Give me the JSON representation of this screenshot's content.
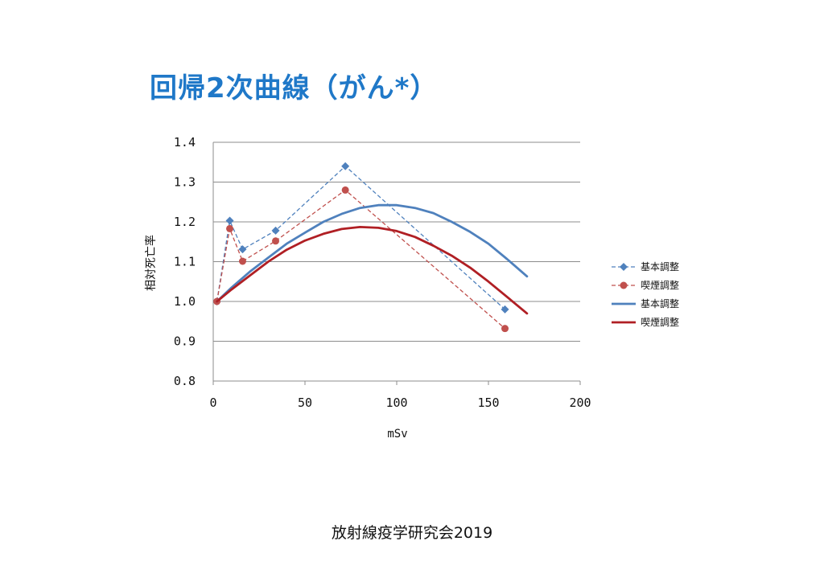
{
  "slide": {
    "title": "回帰2次曲線（がん*）",
    "footer": "放射線疫学研究会2019"
  },
  "chart_data": {
    "type": "line",
    "xlabel": "mSv",
    "ylabel": "相対死亡率",
    "xlim": [
      0,
      200
    ],
    "ylim": [
      0.8,
      1.4
    ],
    "x_ticks": [
      "0",
      "50",
      "100",
      "150",
      "200"
    ],
    "x_tick_values": [
      0,
      50,
      100,
      150,
      200
    ],
    "y_ticks": [
      "0.8",
      "0.9",
      "1.0",
      "1.1",
      "1.2",
      "1.3",
      "1.4"
    ],
    "y_tick_values": [
      0.8,
      0.9,
      1.0,
      1.1,
      1.2,
      1.3,
      1.4
    ],
    "grid": "horizontal",
    "legend_position": "right",
    "series": [
      {
        "name": "基本調整",
        "style": "dashed-marker",
        "marker": "diamond",
        "color": "#4f81bd",
        "points": [
          [
            2,
            1.0
          ],
          [
            9,
            1.203
          ],
          [
            16,
            1.131
          ],
          [
            34,
            1.178
          ],
          [
            72,
            1.34
          ],
          [
            159,
            0.98
          ]
        ]
      },
      {
        "name": "喫煙調整",
        "style": "dashed-marker",
        "marker": "circle",
        "color": "#c0504d",
        "points": [
          [
            2,
            1.0
          ],
          [
            9,
            1.183
          ],
          [
            16,
            1.101
          ],
          [
            34,
            1.152
          ],
          [
            72,
            1.28
          ],
          [
            159,
            0.932
          ]
        ]
      },
      {
        "name": "基本調整",
        "style": "solid-curve",
        "color": "#4f81bd",
        "points": [
          [
            2,
            1.0
          ],
          [
            10,
            1.035
          ],
          [
            20,
            1.075
          ],
          [
            30,
            1.11
          ],
          [
            40,
            1.145
          ],
          [
            50,
            1.173
          ],
          [
            60,
            1.2
          ],
          [
            70,
            1.22
          ],
          [
            80,
            1.235
          ],
          [
            90,
            1.242
          ],
          [
            100,
            1.242
          ],
          [
            110,
            1.235
          ],
          [
            120,
            1.222
          ],
          [
            130,
            1.2
          ],
          [
            140,
            1.175
          ],
          [
            150,
            1.145
          ],
          [
            160,
            1.107
          ],
          [
            171,
            1.063
          ]
        ]
      },
      {
        "name": "喫煙調整",
        "style": "solid-curve",
        "color": "#b01f24",
        "points": [
          [
            2,
            1.0
          ],
          [
            10,
            1.03
          ],
          [
            20,
            1.065
          ],
          [
            30,
            1.1
          ],
          [
            40,
            1.13
          ],
          [
            50,
            1.153
          ],
          [
            60,
            1.17
          ],
          [
            70,
            1.182
          ],
          [
            80,
            1.187
          ],
          [
            90,
            1.185
          ],
          [
            100,
            1.177
          ],
          [
            110,
            1.162
          ],
          [
            120,
            1.14
          ],
          [
            130,
            1.115
          ],
          [
            140,
            1.085
          ],
          [
            150,
            1.05
          ],
          [
            160,
            1.012
          ],
          [
            171,
            0.97
          ]
        ]
      }
    ]
  }
}
